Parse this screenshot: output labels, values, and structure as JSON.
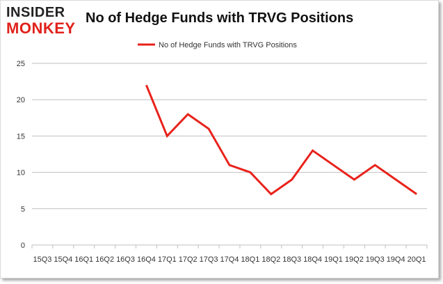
{
  "logo": {
    "line1": "INSIDER",
    "line2": "MONKEY"
  },
  "colors": {
    "series": "#e8221b",
    "grid": "#bfbfbf",
    "logo_accent": "#e0221b"
  },
  "chart_data": {
    "type": "line",
    "title": "No of Hedge Funds with TRVG Positions",
    "xlabel": "",
    "ylabel": "",
    "legend_position": "top-center",
    "grid": true,
    "ylim": [
      0,
      25
    ],
    "yticks": [
      0,
      5,
      10,
      15,
      20,
      25
    ],
    "categories": [
      "15Q3",
      "15Q4",
      "16Q1",
      "16Q2",
      "16Q3",
      "16Q4",
      "17Q1",
      "17Q2",
      "17Q3",
      "17Q4",
      "18Q1",
      "18Q2",
      "18Q3",
      "18Q4",
      "19Q1",
      "19Q2",
      "19Q3",
      "19Q4",
      "20Q1"
    ],
    "series": [
      {
        "name": "No of Hedge Funds with TRVG  Positions",
        "values": [
          null,
          null,
          null,
          null,
          null,
          22,
          15,
          18,
          16,
          11,
          10,
          7,
          9,
          13,
          11,
          9,
          11,
          9,
          7
        ]
      }
    ]
  }
}
